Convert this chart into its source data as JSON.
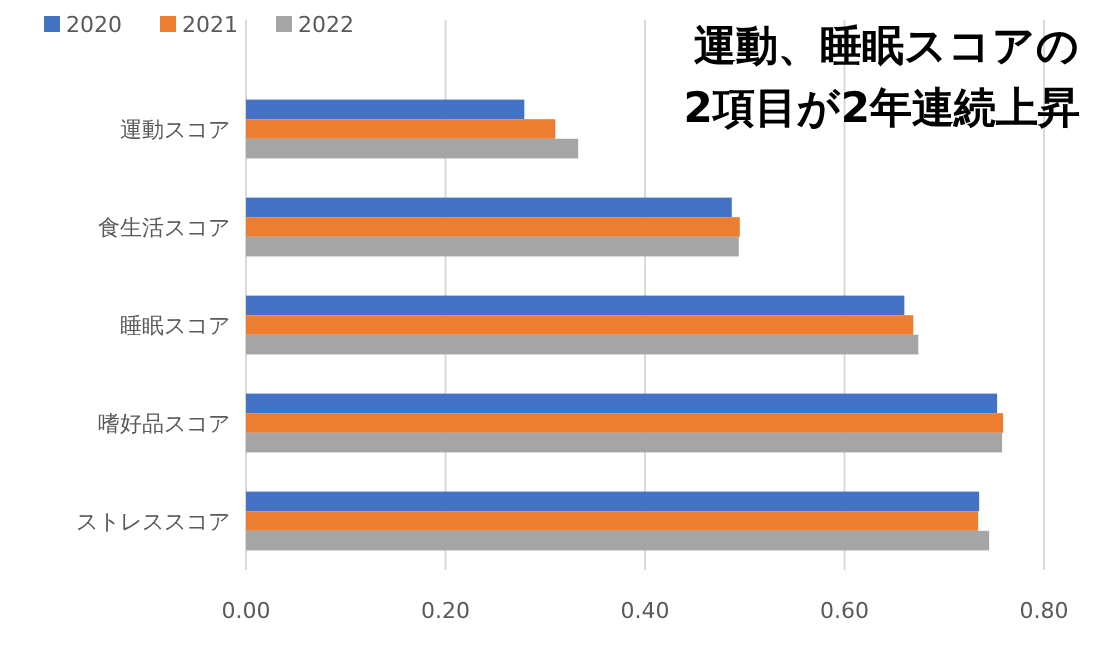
{
  "chart_data": {
    "type": "bar",
    "orientation": "horizontal",
    "title": "運動、睡眠スコアの\n2項目が2年連続上昇",
    "categories": [
      "運動スコア",
      "食生活スコア",
      "睡眠スコア",
      "嗜好品スコア",
      "ストレススコア"
    ],
    "series": [
      {
        "name": "2020",
        "color": "#4472c4",
        "values": [
          0.279,
          0.487,
          0.66,
          0.753,
          0.735
        ]
      },
      {
        "name": "2021",
        "color": "#ed7d31",
        "values": [
          0.31,
          0.495,
          0.669,
          0.759,
          0.734
        ]
      },
      {
        "name": "2022",
        "color": "#a5a5a5",
        "values": [
          0.333,
          0.494,
          0.674,
          0.758,
          0.745
        ]
      }
    ],
    "xlim": [
      0,
      0.8
    ],
    "xticks": [
      {
        "value": 0,
        "label": "0.00"
      },
      {
        "value": 0.2,
        "label": "0.20"
      },
      {
        "value": 0.4,
        "label": "0.40"
      },
      {
        "value": 0.6,
        "label": "0.60"
      },
      {
        "value": 0.8,
        "label": "0.80"
      }
    ],
    "grid": "x",
    "legend": "top left"
  }
}
